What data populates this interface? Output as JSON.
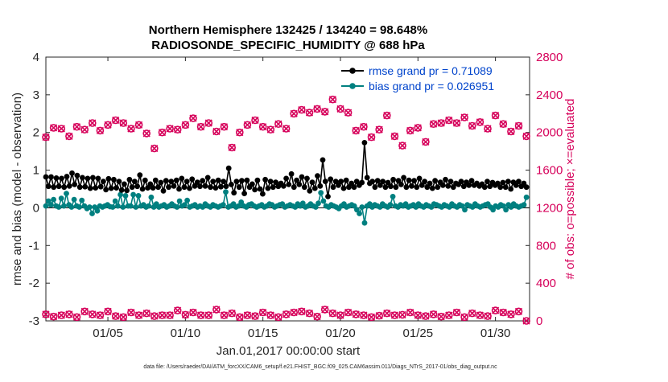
{
  "chart_data": {
    "type": "line",
    "title_line1": "Northern Hemisphere 132425 / 134240 = 98.648%",
    "title_line2": "RADIOSONDE_SPECIFIC_HUMIDITY @ 688 hPa",
    "xlabel": "Jan.01,2017 00:00:00 start",
    "ylabel_left": "rmse and bias (model - observation)",
    "ylabel_right": "# of obs: o=possible; ×=evaluated",
    "footnote": "data file: /Users/raeder/DAI/ATM_forcXX/CAM6_setup/f.e21.FHIST_BGC.f09_025.CAM6assim.011/Diags_NTrS_2017-01/obs_diag_output.nc",
    "xlim": [
      1,
      32.2
    ],
    "ylim_left": [
      -3,
      4
    ],
    "ylim_right": [
      0,
      2800
    ],
    "x_ticks": [
      5,
      10,
      15,
      20,
      25,
      30
    ],
    "x_tick_labels": [
      "01/05",
      "01/10",
      "01/15",
      "01/20",
      "01/25",
      "01/30"
    ],
    "y_left_ticks": [
      "-3",
      "-2",
      "-1",
      "0",
      "1",
      "2",
      "3",
      "4"
    ],
    "y_right_ticks": [
      "0",
      "400",
      "800",
      "1200",
      "1600",
      "2000",
      "2400",
      "2800"
    ],
    "legend": [
      {
        "label": "rmse grand pr = 0.71089",
        "color": "#000000"
      },
      {
        "label": "bias grand pr = 0.026951",
        "color": "#008080"
      }
    ],
    "colors": {
      "rmse": "#000000",
      "bias": "#008080",
      "obs": "#d6005a",
      "zero_line": "#000000"
    },
    "series": [
      {
        "name": "rmse",
        "values": [
          0.82,
          0.57,
          0.82,
          0.55,
          0.79,
          0.57,
          0.78,
          0.55,
          0.83,
          0.58,
          0.92,
          0.62,
          0.86,
          0.55,
          0.8,
          0.56,
          0.78,
          0.52,
          0.8,
          0.53,
          0.78,
          0.56,
          0.7,
          0.48,
          0.77,
          0.52,
          0.75,
          0.53,
          0.7,
          0.47,
          0.63,
          0.46,
          0.75,
          0.55,
          0.7,
          0.57,
          0.87,
          0.5,
          0.73,
          0.53,
          0.63,
          0.53,
          0.73,
          0.55,
          0.67,
          0.45,
          0.72,
          0.55,
          0.7,
          0.58,
          0.73,
          0.5,
          0.78,
          0.55,
          0.7,
          0.52,
          0.76,
          0.58,
          0.68,
          0.57,
          0.72,
          0.58,
          0.8,
          0.55,
          0.7,
          0.53,
          0.73,
          0.56,
          0.7,
          0.57,
          1.05,
          0.62,
          0.4,
          0.7,
          0.55,
          0.72,
          0.38,
          0.73,
          0.55,
          0.63,
          0.48,
          0.73,
          0.5,
          0.37,
          0.75,
          0.52,
          0.7,
          0.55,
          0.68,
          0.57,
          0.65,
          0.58,
          0.78,
          0.62,
          0.9,
          0.55,
          0.73,
          0.62,
          0.82,
          0.55,
          0.78,
          0.45,
          0.68,
          0.52,
          0.85,
          0.58,
          1.27,
          0.7,
          0.3,
          0.76,
          0.55,
          0.7,
          0.6,
          0.7,
          0.52,
          0.73,
          0.55,
          0.65,
          0.55,
          0.7,
          0.6,
          0.67,
          1.73,
          0.8,
          0.65,
          0.7,
          0.55,
          0.72,
          0.6,
          0.7,
          0.55,
          0.67,
          0.57,
          0.75,
          0.55,
          0.72,
          0.62,
          0.8,
          0.55,
          0.73,
          0.58,
          0.72,
          0.55,
          0.78,
          0.6,
          0.7,
          0.55,
          0.65,
          0.52,
          0.72,
          0.55,
          0.68,
          0.6,
          0.75,
          0.58,
          0.7,
          0.55,
          0.65,
          0.62,
          0.7,
          0.57,
          0.68,
          0.6,
          0.72,
          0.6,
          0.65,
          0.58,
          0.63,
          0.55,
          0.7,
          0.57,
          0.67,
          0.6,
          0.65,
          0.55,
          0.67,
          0.55,
          0.7,
          0.5,
          0.68,
          0.6,
          0.7,
          0.57,
          0.65,
          0.55
        ],
        "marker": "filled-circle"
      },
      {
        "name": "bias",
        "values": [
          0.05,
          0.18,
          0.08,
          0.22,
          0.05,
          0.02,
          0.25,
          0.05,
          0.38,
          0.08,
          0.02,
          0.22,
          0.05,
          0.02,
          0.2,
          0.05,
          -0.02,
          0.02,
          -0.15,
          0.02,
          -0.08,
          0.05,
          0.02,
          0.05,
          0.08,
          0.03,
          0.02,
          0.18,
          0.05,
          0.35,
          0.02,
          0.32,
          0.05,
          0.05,
          0.35,
          0.02,
          0.32,
          0.05,
          0.08,
          0.02,
          0.05,
          0.28,
          0.02,
          0.1,
          0.02,
          0.05,
          0.08,
          0.02,
          0.05,
          0.1,
          0.05,
          0.02,
          0.18,
          0.05,
          0.08,
          0.2,
          0.02,
          0.05,
          0.08,
          0.02,
          0.05,
          0.02,
          0.1,
          0.05,
          0.02,
          0.08,
          0.05,
          0.02,
          0.05,
          0.08,
          0.42,
          0.02,
          0.05,
          0.1,
          0.02,
          0.05,
          0.15,
          0.05,
          0.02,
          0.08,
          0.1,
          0.05,
          0.02,
          0.05,
          0.08,
          0.02,
          0.05,
          0.1,
          0.08,
          0.02,
          0.05,
          0.08,
          0.1,
          0.02,
          0.05,
          0.08,
          0.05,
          0.02,
          0.1,
          0.05,
          0.12,
          0.02,
          0.05,
          0.1,
          0.05,
          0.02,
          0.12,
          0.4,
          0.18,
          0.05,
          0.02,
          0.08,
          0.05,
          0.02,
          -0.02,
          0.05,
          0.1,
          0.02,
          0.05,
          0.08,
          0.05,
          -0.05,
          -0.15,
          0.02,
          -0.4,
          0.05,
          0.1,
          0.02,
          0.08,
          0.05,
          0.02,
          0.1,
          0.05,
          0.02,
          0.08,
          0.3,
          0.05,
          0.02,
          0.08,
          0.05,
          0.1,
          0.02,
          0.05,
          0.08,
          0.02,
          0.1,
          0.05,
          0.02,
          0.08,
          0.05,
          0.02,
          0.1,
          0.08,
          0.05,
          0.02,
          0.08,
          0.05,
          0.02,
          0.1,
          0.05,
          0.02,
          0.08,
          0.05,
          -0.05,
          0.08,
          0.05,
          0.02,
          0.1,
          0.05,
          0.02,
          0.05,
          0.08,
          0.1,
          0.02,
          -0.05,
          0.05,
          0.02,
          0.08,
          0.05,
          -0.05,
          0.08,
          0.02,
          0.1,
          0.05,
          0.02,
          0.05,
          0.08,
          0.28
        ],
        "marker": "filled-circle"
      },
      {
        "name": "obs_possible",
        "x": [
          1.0,
          1.5,
          2.0,
          2.5,
          3.0,
          3.5,
          4.0,
          4.5,
          5.0,
          5.5,
          6.0,
          6.5,
          7.0,
          7.5,
          8.0,
          8.5,
          9.0,
          9.5,
          10.0,
          10.5,
          11.0,
          11.5,
          12.0,
          12.5,
          13.0,
          13.5,
          14.0,
          14.5,
          15.0,
          15.5,
          16.0,
          16.5,
          17.0,
          17.5,
          18.0,
          18.5,
          19.0,
          19.5,
          20.0,
          20.5,
          21.0,
          21.5,
          22.0,
          22.5,
          23.0,
          23.5,
          24.0,
          24.5,
          25.0,
          25.5,
          26.0,
          26.5,
          27.0,
          27.5,
          28.0,
          28.5,
          29.0,
          29.5,
          30.0,
          30.5,
          31.0,
          31.5,
          32.0
        ],
        "values": [
          1950,
          2050,
          2040,
          1960,
          2060,
          2030,
          2100,
          2020,
          2080,
          2130,
          2100,
          2040,
          2080,
          1990,
          1830,
          2000,
          2040,
          2030,
          2080,
          2150,
          2060,
          2100,
          2010,
          2060,
          1840,
          2000,
          2080,
          2130,
          2060,
          2030,
          2090,
          2040,
          2200,
          2240,
          2210,
          2250,
          2220,
          2350,
          2250,
          2210,
          2020,
          2060,
          1950,
          2030,
          2180,
          1960,
          1860,
          2020,
          2050,
          1900,
          2090,
          2100,
          2130,
          2100,
          2160,
          2070,
          2110,
          2040,
          2180,
          2090,
          2010,
          2070,
          1960
        ],
        "marker": "circle"
      },
      {
        "name": "obs_evaluated",
        "x": [
          1.0,
          1.5,
          2.0,
          2.5,
          3.0,
          3.5,
          4.0,
          4.5,
          5.0,
          5.5,
          6.0,
          6.5,
          7.0,
          7.5,
          8.0,
          8.5,
          9.0,
          9.5,
          10.0,
          10.5,
          11.0,
          11.5,
          12.0,
          12.5,
          13.0,
          13.5,
          14.0,
          14.5,
          15.0,
          15.5,
          16.0,
          16.5,
          17.0,
          17.5,
          18.0,
          18.5,
          19.0,
          19.5,
          20.0,
          20.5,
          21.0,
          21.5,
          22.0,
          22.5,
          23.0,
          23.5,
          24.0,
          24.5,
          25.0,
          25.5,
          26.0,
          26.5,
          27.0,
          27.5,
          28.0,
          28.5,
          29.0,
          29.5,
          30.0,
          30.5,
          31.0,
          31.5,
          32.0
        ],
        "values": [
          70,
          45,
          60,
          70,
          40,
          100,
          70,
          60,
          100,
          50,
          40,
          90,
          60,
          80,
          50,
          60,
          60,
          110,
          65,
          90,
          60,
          60,
          120,
          60,
          80,
          40,
          60,
          50,
          90,
          60,
          40,
          70,
          90,
          100,
          80,
          45,
          120,
          80,
          60,
          90,
          70,
          60,
          40,
          55,
          80,
          60,
          65,
          90,
          60,
          50,
          70,
          45,
          60,
          90,
          40,
          80,
          60,
          50,
          110,
          90,
          70,
          100,
          0
        ],
        "marker": "x-circle"
      }
    ]
  }
}
